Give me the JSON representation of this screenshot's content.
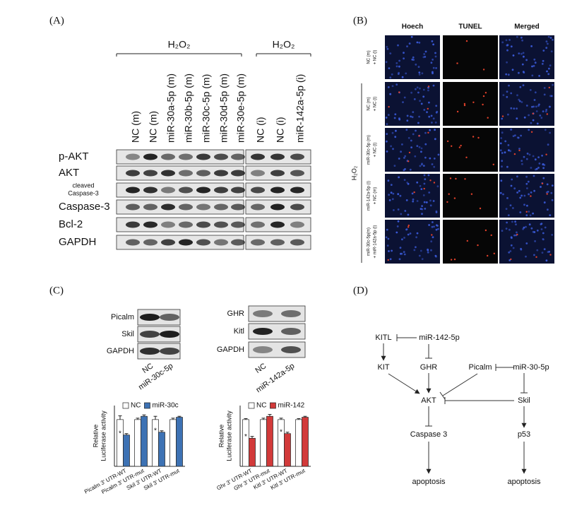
{
  "panel_a": {
    "label": "(A)",
    "treatments": [
      "H₂O₂",
      "H₂O₂"
    ],
    "lanes": [
      "NC (m)",
      "NC (m)",
      "miR-30a-5p (m)",
      "miR-30b-5p (m)",
      "miR-30c-5p (m)",
      "miR-30d-5p (m)",
      "miR-30e-5p (m)",
      "NC (i)",
      "NC (i)",
      "miR-142a-5p (i)"
    ],
    "rows": [
      [
        "p-AKT"
      ],
      [
        "AKT"
      ],
      [
        "cleaved",
        "Caspase-3"
      ],
      [
        "Caspase-3"
      ],
      [
        "Bcl-2"
      ],
      [
        "GAPDH"
      ]
    ]
  },
  "panel_b": {
    "label": "(B)",
    "columns": [
      "Hoech",
      "TUNEL",
      "Merged"
    ],
    "treatment": "H₂O₂",
    "rows": [
      [
        "NC (m)",
        "+ NC (i)"
      ],
      [
        "NC (m)",
        "+ NC (i)"
      ],
      [
        "miR-30c-5p (m)",
        "+ NC (i)"
      ],
      [
        "miR-142a-5p (i)",
        "+ NC (m)"
      ],
      [
        "miR-30c-5p(m)",
        "+ miR-142a-5p (i)"
      ]
    ]
  },
  "panel_c": {
    "label": "(C)",
    "blots": [
      {
        "rows": [
          "Picalm",
          "Skil",
          "GAPDH"
        ],
        "lanes": [
          "NC",
          "miR-30c-5p"
        ]
      },
      {
        "rows": [
          "GHR",
          "Kitl",
          "GAPDH"
        ],
        "lanes": [
          "NC",
          "miR-142a-5p"
        ]
      }
    ],
    "charts": [
      {
        "type": "bar",
        "ylabel": [
          "Relative",
          "Luciferase activity"
        ],
        "categories": [
          "Picalm 3' UTR-WT",
          "Picalm 3' UTR-mut",
          "Skil 3' UTR-WT",
          "Skil 3' UTR-mut"
        ],
        "series": [
          {
            "name": "NC",
            "color": "#ffffff",
            "values": [
              1.0,
              1.0,
              1.0,
              1.0
            ],
            "errors": [
              0.08,
              0.03,
              0.07,
              0.03
            ]
          },
          {
            "name": "miR-30c",
            "color": "#3d72b4",
            "values": [
              0.67,
              1.07,
              0.73,
              1.05
            ],
            "errors": [
              0.03,
              0.03,
              0.03,
              0.02
            ]
          }
        ],
        "markers": [
          "*",
          null,
          "*",
          null
        ],
        "ylim": [
          0,
          1.3
        ]
      },
      {
        "type": "bar",
        "ylabel": [
          "Relative",
          "Luciferase activity"
        ],
        "categories": [
          "Ghr 3' UTR-WT",
          "Ghr 3' UTR-mut",
          "Kitl 3' UTR-WT",
          "Kitl 3' UTR-mut"
        ],
        "series": [
          {
            "name": "NC",
            "color": "#ffffff",
            "values": [
              1.0,
              1.0,
              1.0,
              1.0
            ],
            "errors": [
              0.02,
              0.03,
              0.03,
              0.02
            ]
          },
          {
            "name": "miR-142",
            "color": "#d23a3a",
            "values": [
              0.6,
              1.07,
              0.7,
              1.05
            ],
            "errors": [
              0.04,
              0.04,
              0.03,
              0.02
            ]
          }
        ],
        "markers": [
          "*",
          null,
          "*",
          null
        ],
        "ylim": [
          0,
          1.3
        ]
      }
    ]
  },
  "panel_d": {
    "label": "(D)",
    "nodes": [
      "KITL",
      "miR-142-5p",
      "KIT",
      "GHR",
      "Picalm",
      "miR-30-5p",
      "AKT",
      "Skil",
      "Caspase 3",
      "p53",
      "apoptosis",
      "apoptosis"
    ]
  }
}
